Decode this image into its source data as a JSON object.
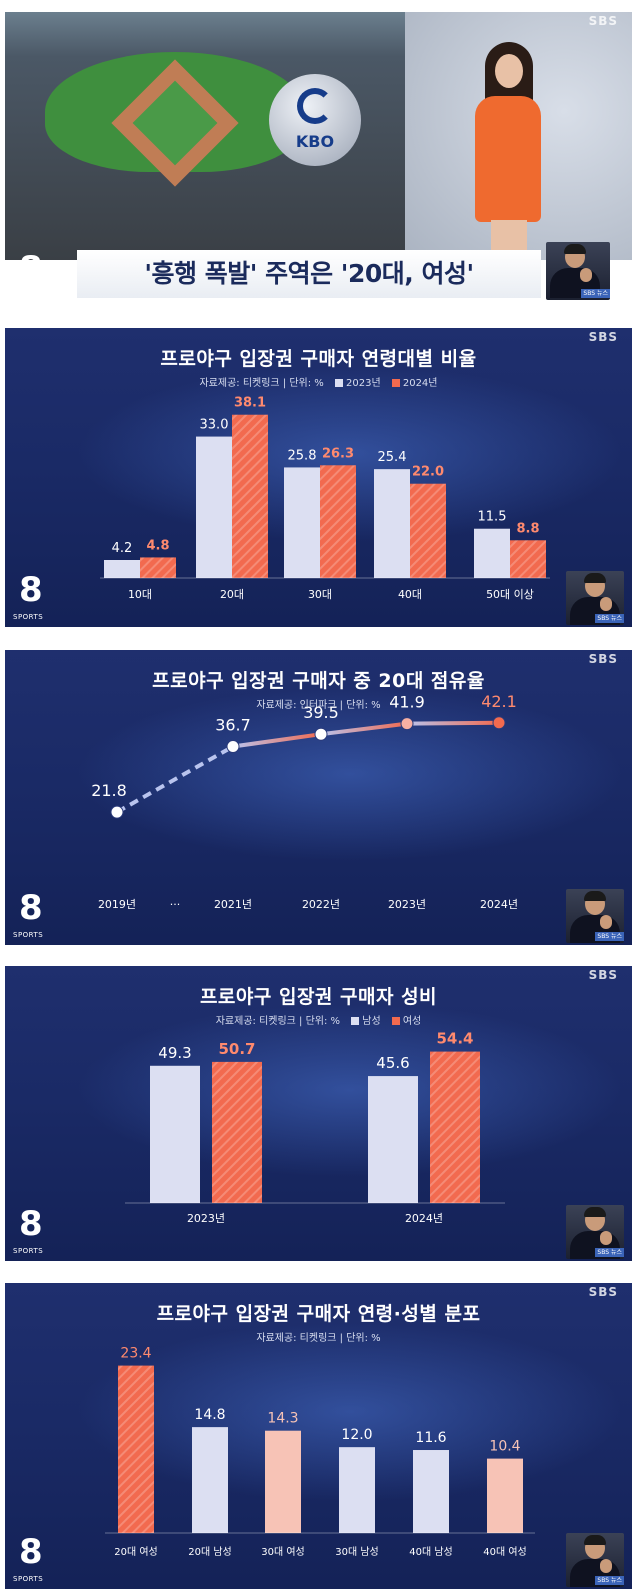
{
  "common": {
    "broadcaster": "SBS",
    "logo_digit": "8",
    "logo_text": "SPORTS",
    "news_stamp": "SBS 뉴스",
    "colors": {
      "series2023": "#dcdff2",
      "series2024": "#f26a4f",
      "male": "#dcdff2",
      "female": "#f26a4f",
      "title": "#ffffff"
    }
  },
  "panel1": {
    "caption": "'흥행 폭발' 주역은 '20대, 여성'",
    "badge_text": "KBO"
  },
  "chart_data": [
    {
      "type": "bar",
      "title": "프로야구 입장권 구매자 연령대별 비율",
      "source_label": "자료제공: 티켓링크 | 단위: %",
      "categories": [
        "10대",
        "20대",
        "30대",
        "40대",
        "50대 이상"
      ],
      "series": [
        {
          "name": "2023년",
          "values": [
            4.2,
            33.0,
            25.8,
            25.4,
            11.5
          ],
          "labels": [
            "4.2",
            "33.0",
            "25.8",
            "25.4",
            "11.5"
          ]
        },
        {
          "name": "2024년",
          "values": [
            4.8,
            38.1,
            26.3,
            22.0,
            8.8
          ],
          "labels": [
            "4.8",
            "38.1",
            "26.3",
            "22.0",
            "8.8"
          ]
        }
      ],
      "ylim": [
        0,
        42
      ]
    },
    {
      "type": "line",
      "title": "프로야구 입장권 구매자 중 20대 점유율",
      "source_label": "자료제공: 인터파크 | 단위: %",
      "x": [
        "2019년",
        "2021년",
        "2022년",
        "2023년",
        "2024년"
      ],
      "gap_label": "···",
      "values": [
        21.8,
        36.7,
        39.5,
        41.9,
        42.1
      ],
      "labels": [
        "21.8",
        "36.7",
        "39.5",
        "41.9",
        "42.1"
      ],
      "ylim": [
        15,
        45
      ]
    },
    {
      "type": "bar",
      "title": "프로야구 입장권 구매자 성비",
      "source_label": "자료제공: 티켓링크 | 단위: %",
      "categories": [
        "2023년",
        "2024년"
      ],
      "series": [
        {
          "name": "남성",
          "values": [
            49.3,
            45.6
          ],
          "labels": [
            "49.3",
            "45.6"
          ]
        },
        {
          "name": "여성",
          "values": [
            50.7,
            54.4
          ],
          "labels": [
            "50.7",
            "54.4"
          ]
        }
      ],
      "ylim": [
        0,
        60
      ]
    },
    {
      "type": "bar",
      "title": "프로야구 입장권 구매자 연령·성별 분포",
      "source_label": "자료제공: 티켓링크 | 단위: %",
      "categories": [
        "20대 여성",
        "20대 남성",
        "30대 여성",
        "30대 남성",
        "40대 남성",
        "40대 여성"
      ],
      "values": [
        23.4,
        14.8,
        14.3,
        12.0,
        11.6,
        10.4
      ],
      "labels": [
        "23.4",
        "14.8",
        "14.3",
        "12.0",
        "11.6",
        "10.4"
      ],
      "gender": [
        "female",
        "male",
        "female",
        "male",
        "male",
        "female"
      ],
      "ylim": [
        0,
        26
      ]
    }
  ]
}
